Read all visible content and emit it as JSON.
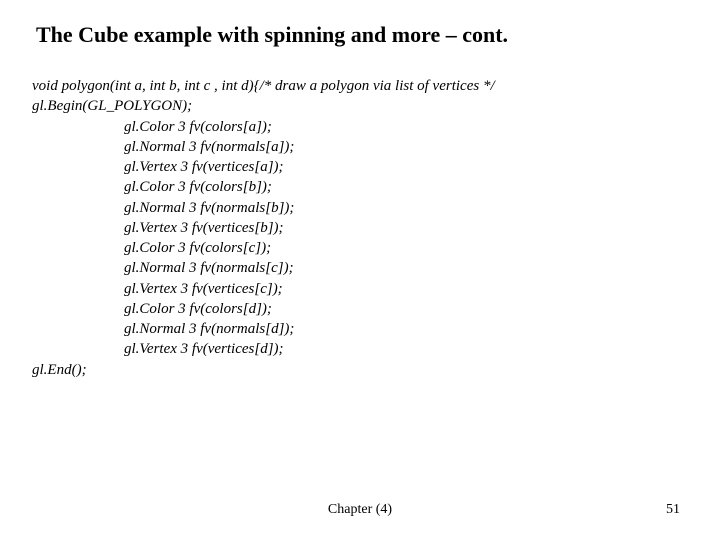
{
  "title": "The Cube example with spinning and more – cont.",
  "code": {
    "line0": "void polygon(int a, int b, int c , int d){/* draw a polygon via list of vertices */",
    "line1": "gl.Begin(GL_POLYGON);",
    "line2": "gl.Color 3 fv(colors[a]);",
    "line3": "gl.Normal 3 fv(normals[a]);",
    "line4": "gl.Vertex 3 fv(vertices[a]);",
    "line5": "gl.Color 3 fv(colors[b]);",
    "line6": "gl.Normal 3 fv(normals[b]);",
    "line7": "gl.Vertex 3 fv(vertices[b]);",
    "line8": "gl.Color 3 fv(colors[c]);",
    "line9": "gl.Normal 3 fv(normals[c]);",
    "line10": "gl.Vertex 3 fv(vertices[c]);",
    "line11": "gl.Color 3 fv(colors[d]);",
    "line12": "gl.Normal 3 fv(normals[d]);",
    "line13": "gl.Vertex 3 fv(vertices[d]);",
    "line14": "gl.End();"
  },
  "footer": {
    "center": "Chapter (4)",
    "page": "51"
  },
  "styling": {
    "background_color": "#ffffff",
    "title_color": "#000000",
    "title_fontsize": 22,
    "title_fontweight": "bold",
    "body_color": "#000000",
    "body_fontsize": 15,
    "body_fontstyle": "italic",
    "footer_fontsize": 14,
    "font_family": "Georgia, Times New Roman, serif"
  }
}
